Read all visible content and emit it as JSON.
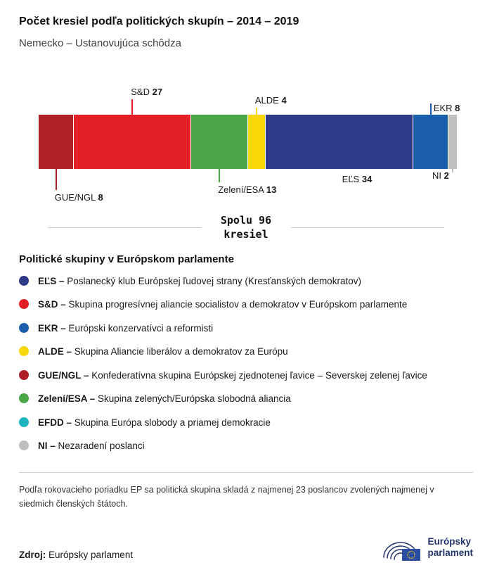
{
  "title": "Počet kresiel podľa politických skupín – 2014 – 2019",
  "subtitle": "Nemecko – Ustanovujúca schôdza",
  "chart_data": {
    "type": "bar",
    "variant": "horizontal-stacked",
    "title": "Počet kresiel podľa politických skupín – 2014 – 2019",
    "subtitle": "Nemecko – Ustanovujúca schôdza",
    "total_seats": 96,
    "total_lines": [
      "Spolu 96",
      "kresiel"
    ],
    "segments": [
      {
        "id": "gue-ngl",
        "name": "GUE/NGL",
        "seats": 8,
        "color": "#b01f28",
        "callout": {
          "side": "below",
          "line": 30,
          "align": "left",
          "beside": false
        }
      },
      {
        "id": "sd",
        "name": "S&D",
        "seats": 27,
        "color": "#e31e24",
        "callout": {
          "side": "above",
          "line": 22,
          "align": "left",
          "beside": false
        }
      },
      {
        "id": "zeleni-esa",
        "name": "Zelení/ESA",
        "seats": 13,
        "color": "#4aa647",
        "callout": {
          "side": "below",
          "line": 19,
          "align": "left",
          "beside": false
        }
      },
      {
        "id": "alde",
        "name": "ALDE",
        "seats": 4,
        "color": "#f7d708",
        "callout": {
          "side": "above",
          "line": 10,
          "align": "left",
          "beside": false
        }
      },
      {
        "id": "els",
        "name": "EĽS",
        "seats": 34,
        "color": "#2e3a87",
        "callout": {
          "side": "below",
          "line": 0,
          "align": "left",
          "beside": false
        }
      },
      {
        "id": "ekr",
        "name": "EKR",
        "seats": 8,
        "color": "#1b5eab",
        "callout": {
          "side": "above",
          "line": 16,
          "align": "left",
          "beside": true
        }
      },
      {
        "id": "ni",
        "name": "NI",
        "seats": 2,
        "color": "#bfbfbf",
        "callout": {
          "side": "below",
          "line": 5,
          "align": "right",
          "beside": true
        }
      }
    ]
  },
  "legend": {
    "heading": "Politické skupiny v Európskom parlamente",
    "separator": "–",
    "items": [
      {
        "id": "els",
        "abbr": "EĽS",
        "color": "#2e3a87",
        "text": "Poslanecký klub Európskej ľudovej strany (Kresťanských demokratov)"
      },
      {
        "id": "sd",
        "abbr": "S&D",
        "color": "#e31e24",
        "text": "Skupina progresívnej aliancie socialistov a demokratov v Európskom parlamente"
      },
      {
        "id": "ekr",
        "abbr": "EKR",
        "color": "#1b5eab",
        "text": "Európski konzervatívci a reformisti"
      },
      {
        "id": "alde",
        "abbr": "ALDE",
        "color": "#f7d708",
        "text": "Skupina Aliancie liberálov a demokratov za Európu"
      },
      {
        "id": "gue-ngl",
        "abbr": "GUE/NGL",
        "color": "#b01f28",
        "text": "Konfederatívna skupina Európskej zjednotenej ľavice – Severskej zelenej ľavice"
      },
      {
        "id": "zeleni-esa",
        "abbr": "Zelení/ESA",
        "color": "#4aa647",
        "text": "Skupina zelených/Európska slobodná aliancia"
      },
      {
        "id": "efdd",
        "abbr": "EFDD",
        "color": "#1db6c0",
        "text": "Skupina Európa slobody a priamej demokracie"
      },
      {
        "id": "ni",
        "abbr": "NI",
        "color": "#bfbfbf",
        "text": "Nezaradení poslanci"
      }
    ]
  },
  "footnote": "Podľa rokovacieho poriadku EP sa politická skupina skladá z najmenej 23 poslancov zvolených najmenej v siedmich členských štátoch.",
  "source": {
    "label": "Zdroj:",
    "value": "Európsky parlament"
  },
  "logo": {
    "lines": [
      "Európsky",
      "parlament"
    ]
  }
}
